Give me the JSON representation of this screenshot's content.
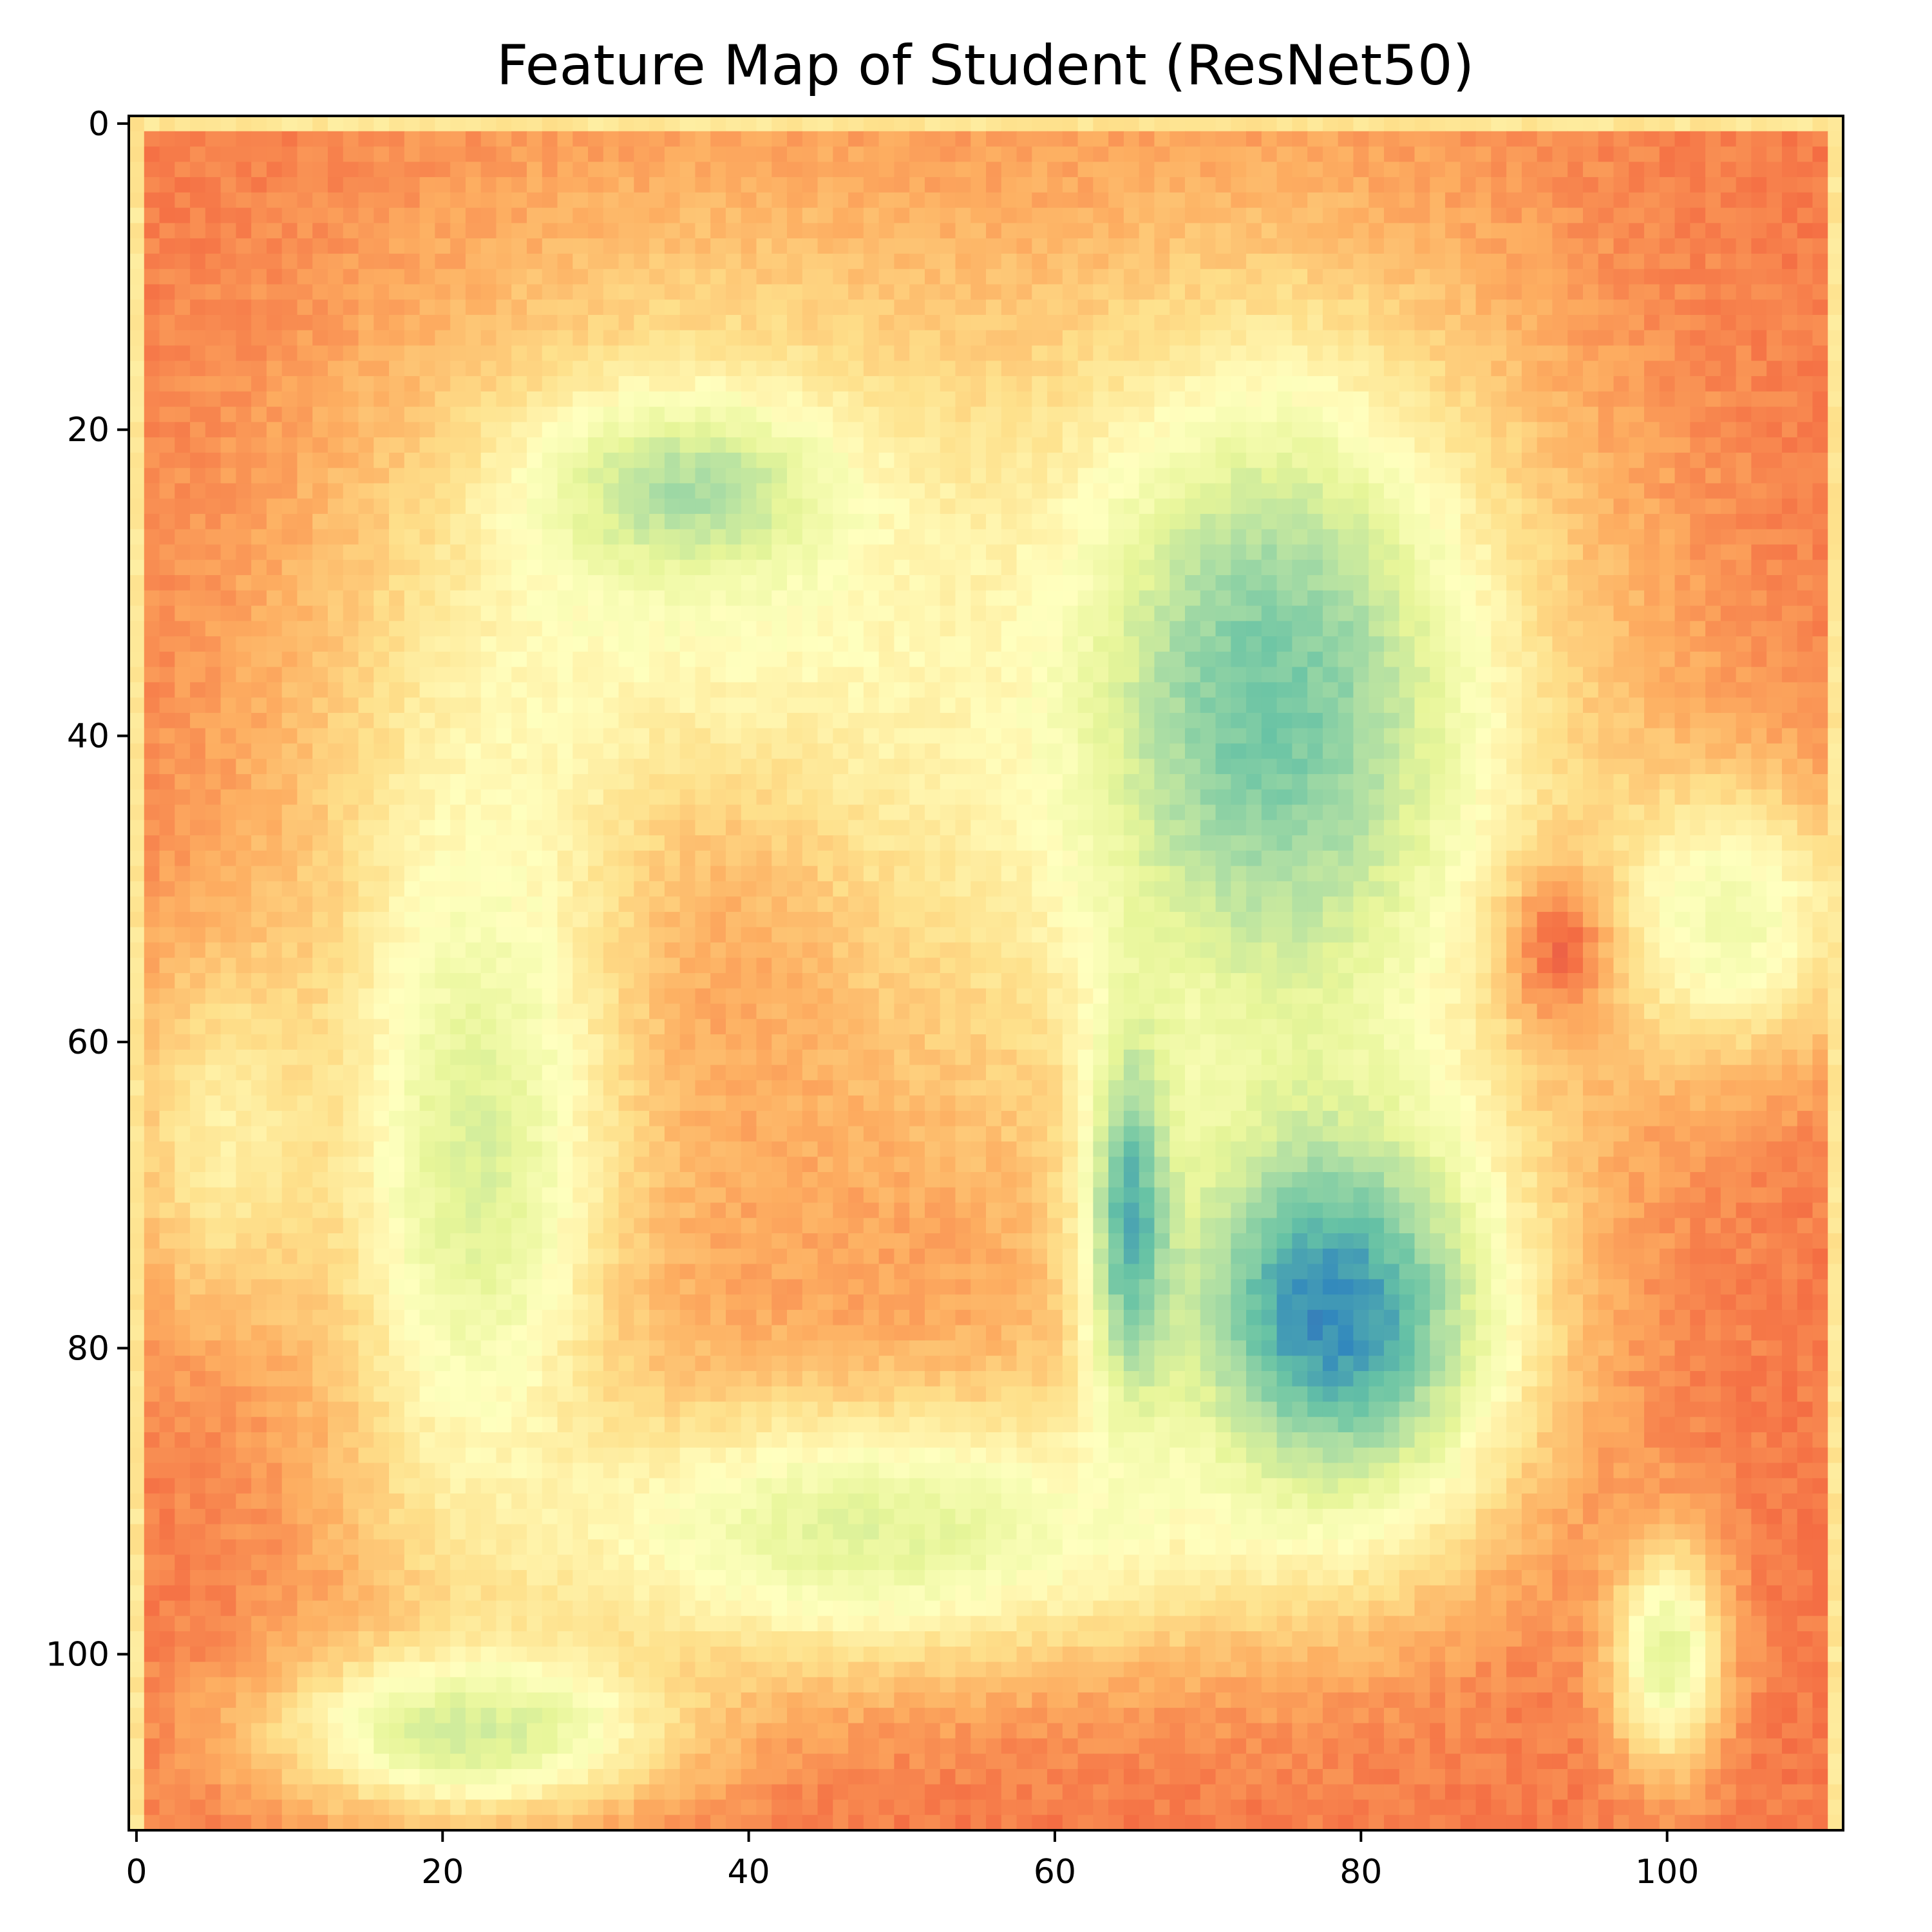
{
  "chart_data": {
    "type": "heatmap",
    "title": "Feature Map of Student (ResNet50)",
    "xlabel": "",
    "ylabel": "",
    "x_range": [
      -0.5,
      111.5
    ],
    "y_range": [
      111.5,
      -0.5
    ],
    "x_ticks": [
      0,
      20,
      40,
      60,
      80,
      100
    ],
    "y_ticks": [
      0,
      20,
      40,
      60,
      80,
      100
    ],
    "x_tick_labels": [
      "0",
      "20",
      "40",
      "60",
      "80",
      "100"
    ],
    "y_tick_labels": [
      "0",
      "20",
      "40",
      "60",
      "80",
      "100"
    ],
    "grid": false,
    "colormap": "Spectral",
    "colormap_stops": [
      "#9e0142",
      "#d53e4f",
      "#f46d43",
      "#fdae61",
      "#fee08b",
      "#ffffbf",
      "#e6f598",
      "#abdda4",
      "#66c2a5",
      "#3288bd",
      "#5e4fa2"
    ],
    "grid_size": [
      112,
      112
    ],
    "value_range": [
      0,
      1
    ],
    "description_regions": [
      {
        "cx": 0.5,
        "cy": 0.5,
        "r": 0.0,
        "value": 0.2
      }
    ],
    "field": {
      "background": 0.22,
      "border_value": 0.42,
      "blobs": [
        {
          "cx": 37,
          "cy": 36,
          "rx": 26,
          "ry": 30,
          "value": 0.55
        },
        {
          "cx": 38,
          "cy": 58,
          "rx": 14,
          "ry": 22,
          "value": 0.28
        },
        {
          "cx": 36,
          "cy": 24,
          "rx": 10,
          "ry": 6,
          "value": 0.7
        },
        {
          "cx": 22,
          "cy": 68,
          "rx": 10,
          "ry": 26,
          "value": 0.62
        },
        {
          "cx": 75,
          "cy": 40,
          "rx": 22,
          "ry": 32,
          "value": 0.58
        },
        {
          "cx": 74,
          "cy": 38,
          "rx": 11,
          "ry": 18,
          "value": 0.78
        },
        {
          "cx": 78,
          "cy": 78,
          "rx": 13,
          "ry": 16,
          "value": 0.9
        },
        {
          "cx": 65,
          "cy": 72,
          "rx": 3,
          "ry": 14,
          "value": 0.84
        },
        {
          "cx": 48,
          "cy": 92,
          "rx": 26,
          "ry": 10,
          "value": 0.6
        },
        {
          "cx": 22,
          "cy": 105,
          "rx": 14,
          "ry": 6,
          "value": 0.64
        },
        {
          "cx": 100,
          "cy": 100,
          "rx": 4,
          "ry": 8,
          "value": 0.6
        },
        {
          "cx": 104,
          "cy": 52,
          "rx": 10,
          "ry": 10,
          "value": 0.55
        },
        {
          "cx": 6,
          "cy": 66,
          "rx": 8,
          "ry": 14,
          "value": 0.45
        },
        {
          "cx": 93,
          "cy": 54,
          "rx": 4,
          "ry": 6,
          "value": 0.2
        }
      ]
    }
  }
}
